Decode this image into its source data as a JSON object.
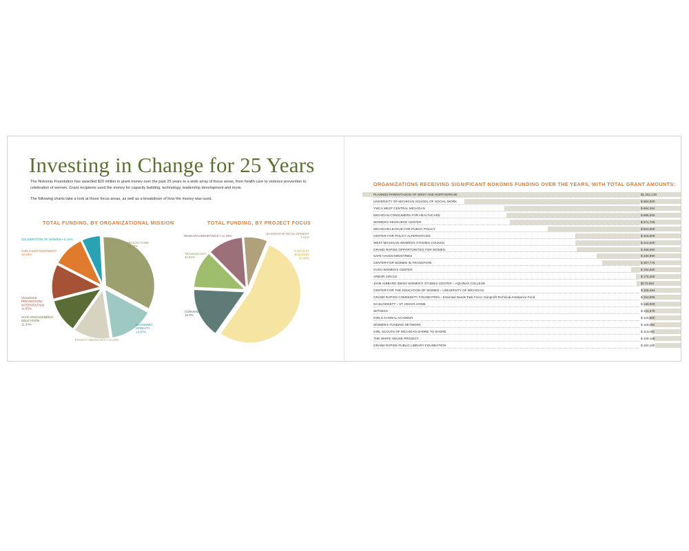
{
  "title": "Investing in Change for 25 Years",
  "intro": {
    "paragraph1": "The Nokomis Foundation has awarded $20 million in grant money over the past 25 years to a wide array of focus areas, from health care to violence prevention to celebration of women. Grant recipients used the money for capacity building, technology, leadership development and more.",
    "paragraph2": "The following charts take a look at those focus areas, as well as a breakdown of how the money was used."
  },
  "colors": {
    "title_green": "#5d7034",
    "accent_orange": "#e07a2c",
    "bar_fill": "#dedbd0"
  },
  "chart_data": [
    {
      "type": "pie",
      "title": "TOTAL FUNDING, BY ORGANIZATIONAL MISSION",
      "slices": [
        {
          "label": "HEALTH CARE",
          "value": 33.92,
          "pct_text": "33.92%",
          "color": "#9ca06f",
          "label_color": "#8b8c50"
        },
        {
          "label": "ECONOMIC MOBILITY",
          "value": 14.97,
          "pct_text": "14.97%",
          "color": "#9dc9c2",
          "label_color": "#2b93aa"
        },
        {
          "label": "POLICY/ ADVOCACY",
          "value": 12.22,
          "pct_text": "12.22%",
          "color": "#d6d3c1",
          "label_color": "#a89f60"
        },
        {
          "label": "CIVIC ENGAGEMENT/ EDUCATION",
          "value": 11.34,
          "pct_text": "11.34%",
          "color": "#5b6d36",
          "label_color": "#5b6d36"
        },
        {
          "label": "VIOLENCE PREVENTION/ INTERVENTION",
          "value": 11.65,
          "pct_text": "11.65%",
          "color": "#a55236",
          "label_color": "#a55236"
        },
        {
          "label": "GIRLS EMPOWERMENT",
          "value": 10.63,
          "pct_text": "10.63%",
          "color": "#e07a2c",
          "label_color": "#e07a2c"
        },
        {
          "label": "CELEBRATION OF WOMEN",
          "value": 6.16,
          "pct_text": "6.16%",
          "color": "#2aa2b4",
          "label_color": "#2a9fb1"
        }
      ]
    },
    {
      "type": "pie",
      "title": "TOTAL FUNDING, BY PROJECT FOCUS",
      "slices": [
        {
          "label": "CAPACITY BUILDING",
          "value": 53.49,
          "pct_text": "53.49%",
          "color": "#f6e4a2",
          "label_color": "#cfa92e"
        },
        {
          "label": "CONVENING",
          "value": 15.9,
          "pct_text": "15.9%",
          "color": "#5f7b77",
          "label_color": "#4f6f6b"
        },
        {
          "label": "TECHNOLOGY",
          "value": 11.82,
          "pct_text": "11.82%",
          "color": "#9ebd6d",
          "label_color": "#7da548"
        },
        {
          "label": "RESEARCH/BRIEFINGS",
          "value": 11.18,
          "pct_text": "11.18%",
          "color": "#9c7079",
          "label_color": "#8d5e6a"
        },
        {
          "label": "LEADERSHIP DEVELOPMENT",
          "value": 7.51,
          "pct_text": "7.51%",
          "color": "#b0a07c",
          "label_color": "#9b8d6b"
        }
      ]
    },
    {
      "type": "bar",
      "title": "ORGANIZATIONS RECEIVING SIGNIFICANT NOKOMIS FUNDING OVER THE YEARS, WITH TOTAL GRANT AMOUNTS:",
      "categories": [
        "PLANNED PARENTHOOD OF WEST AND NORTHERN MI",
        "UNIVERSITY OF MICHIGAN SCHOOL OF SOCIAL WORK",
        "YWCA WEST CENTRAL MICHIGAN",
        "MICHIGAN CONSUMERS FOR HEALTHCARE",
        "WOMEN'S RESOURCE CENTER",
        "MICHIGAN LEAGUE FOR PUBLIC POLICY",
        "CENTER FOR POLICY ALTERNATIVES",
        "WEST MICHIGAN WOMEN'S STUDIES COUNCIL",
        "GRAND RAPIDS OPPORTUNITIES FOR WOMEN",
        "SAFE HAVEN MINISTRIES",
        "CENTER FOR WOMEN IN TRANSITION",
        "GVSU WOMEN'S CENTER",
        "ARBOR CIRCLE",
        "JANE HIBBARD IDEMA WOMEN'S STUDIES CENTER – AQUINAS COLLEGE",
        "CENTER FOR THE EDUCATION OF WOMEN – UNIVERSITY OF MICHIGAN",
        "GRAND RAPIDS COMMUNITY FOUNDATION – Essential Needs Task Force: Nonprofit Technical Assistance Fund",
        "DA BLODGETT – ST JOHN'S HOME",
        "WITNESS",
        "GIRLS CHORAL ACADEMY",
        "WOMEN'S FUNDING NETWORK",
        "GIRL SCOUTS OF MICHIGAN SHORE TO SHORE",
        "THE WHITE HOUSE PROJECT",
        "GRAND RAPIDS PUBLIC LIBRARY FOUNDATION"
      ],
      "amount_labels": [
        "$1,252,219",
        "$ 850,000",
        "$ 694,254",
        "$ 685,000",
        "$ 671,766",
        "$ 523,000",
        "$ 415,000",
        "$ 414,500",
        "$ 408,060",
        "$ 330,980",
        "$ 307,776",
        "$ 194,650",
        "$ 175,250",
        "$173,650",
        "$ 155,484",
        "$ 152,000",
        "$ 146,000",
        "$ 141,675",
        "$ 125,800",
        "$ 119,000",
        "$ 113,650",
        "$ 108,185",
        "$ 100,100"
      ],
      "values": [
        1252219,
        850000,
        694254,
        685000,
        671766,
        523000,
        415000,
        414500,
        408060,
        330980,
        307776,
        194650,
        175250,
        173650,
        155484,
        152000,
        146000,
        141675,
        125800,
        119000,
        113650,
        108185,
        100100
      ]
    }
  ]
}
